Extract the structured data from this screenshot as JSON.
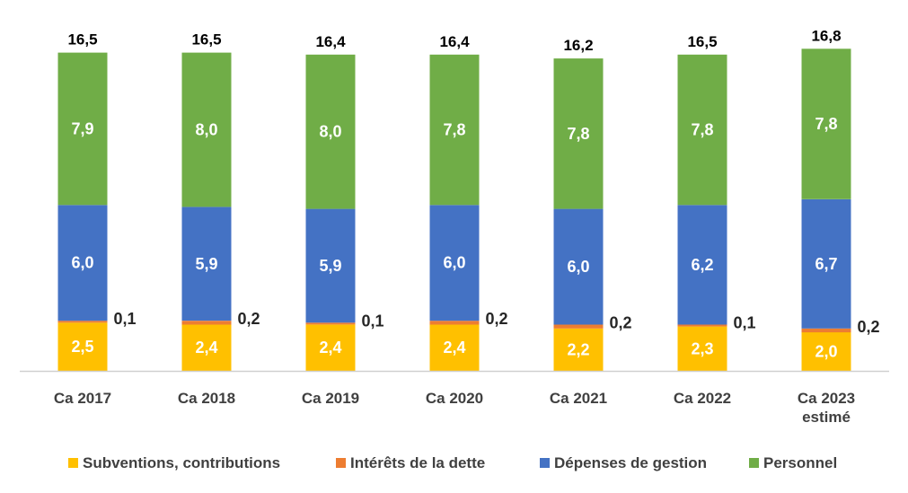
{
  "chart_data": {
    "type": "stacked-bar",
    "title": "",
    "xlabel": "",
    "ylabel": "",
    "categories": [
      [
        "Ca 2017"
      ],
      [
        "Ca 2018"
      ],
      [
        "Ca 2019"
      ],
      [
        "Ca 2020"
      ],
      [
        "Ca 2021"
      ],
      [
        "Ca 2022"
      ],
      [
        "Ca 2023",
        "estimé"
      ]
    ],
    "series": [
      {
        "name": "Subventions, contributions",
        "color": "#FFC000",
        "values": [
          2.5,
          2.4,
          2.4,
          2.4,
          2.2,
          2.3,
          2.0
        ],
        "labels": [
          "2,5",
          "2,4",
          "2,4",
          "2,4",
          "2,2",
          "2,3",
          "2,0"
        ]
      },
      {
        "name": "Intérêts de la dette",
        "color": "#ED7D31",
        "values": [
          0.1,
          0.2,
          0.1,
          0.2,
          0.2,
          0.1,
          0.2
        ],
        "labels": [
          "0,1",
          "0,2",
          "0,1",
          "0,2",
          "0,2",
          "0,1",
          "0,2"
        ]
      },
      {
        "name": "Dépenses de gestion",
        "color": "#4472C4",
        "values": [
          6.0,
          5.9,
          5.9,
          6.0,
          6.0,
          6.2,
          6.7
        ],
        "labels": [
          "6,0",
          "5,9",
          "5,9",
          "6,0",
          "6,0",
          "6,2",
          "6,7"
        ]
      },
      {
        "name": "Personnel",
        "color": "#70AD47",
        "values": [
          7.9,
          8.0,
          8.0,
          7.8,
          7.8,
          7.8,
          7.8
        ],
        "labels": [
          "7,9",
          "8,0",
          "8,0",
          "7,8",
          "7,8",
          "7,8",
          "7,8"
        ]
      }
    ],
    "totals": [
      16.5,
      16.5,
      16.4,
      16.4,
      16.2,
      16.5,
      16.8
    ],
    "total_labels": [
      "16,5",
      "16,5",
      "16,4",
      "16,4",
      "16,2",
      "16,5",
      "16,8"
    ],
    "ylim": [
      0,
      17.6
    ],
    "grid": false,
    "legend_position": "bottom"
  }
}
